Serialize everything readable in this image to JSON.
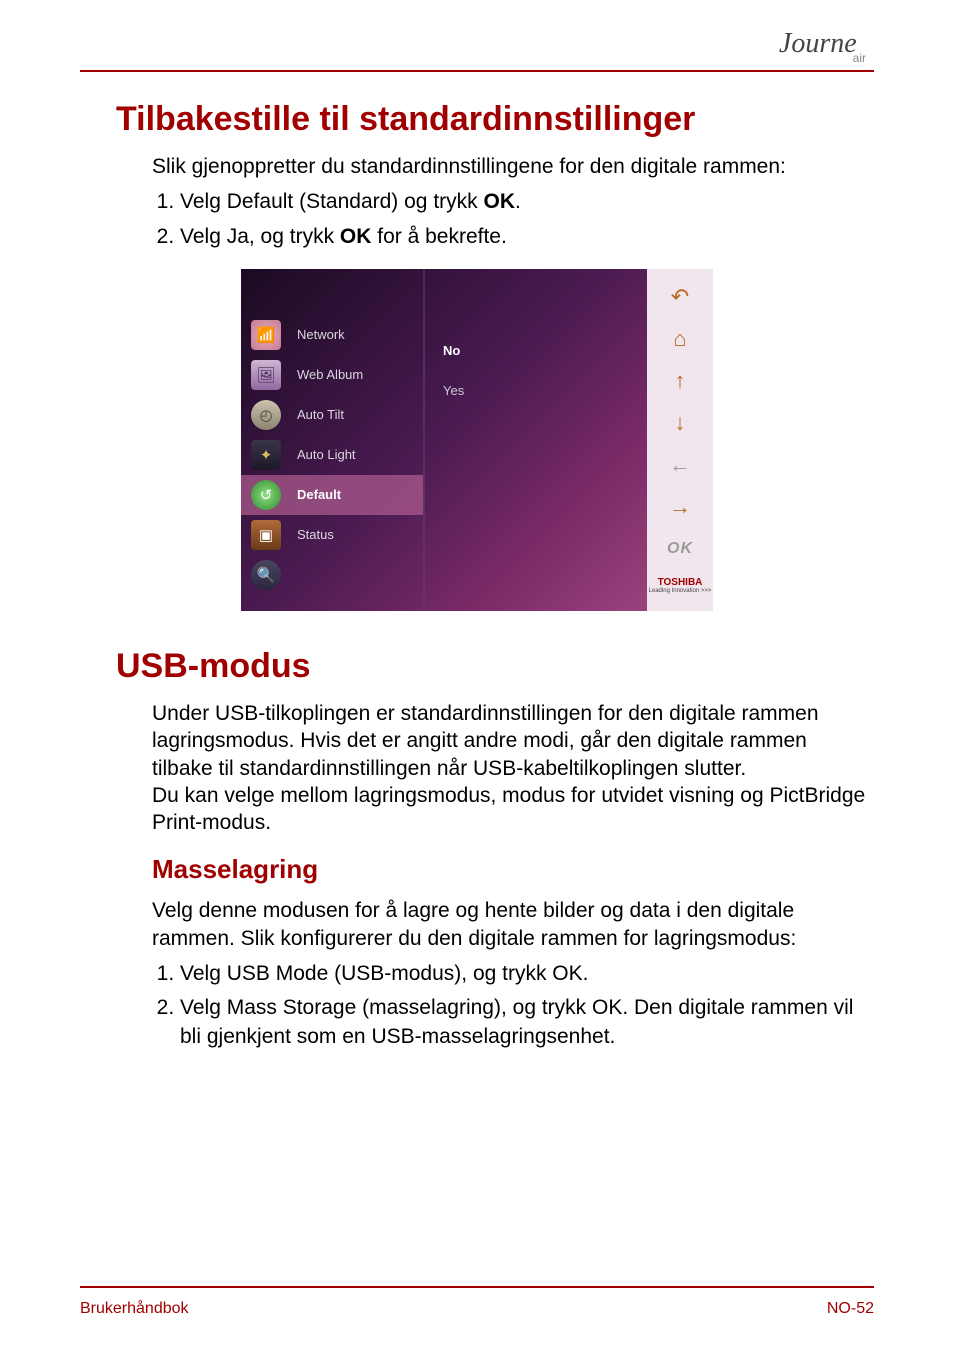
{
  "logo": {
    "main": "Journe",
    "sub": "air"
  },
  "section1": {
    "title": "Tilbakestille til standardinnstillinger",
    "intro": "Slik gjenoppretter du standardinnstillingene for den digitale rammen:",
    "step1_pre": "Velg Default (Standard) og trykk ",
    "step1_bold": "OK",
    "step1_post": ".",
    "step2_pre": "Velg Ja, og trykk ",
    "step2_bold": "OK",
    "step2_post": " for å bekrefte."
  },
  "screenshot": {
    "menu": {
      "network": {
        "label": "Network",
        "icon": "network-icon",
        "selected": false
      },
      "webalbum": {
        "label": "Web Album",
        "icon": "webalbum-icon",
        "selected": false
      },
      "autotilt": {
        "label": "Auto Tilt",
        "icon": "autotilt-icon",
        "selected": false
      },
      "autolight": {
        "label": "Auto Light",
        "icon": "autolight-icon",
        "selected": false
      },
      "default": {
        "label": "Default",
        "icon": "default-icon",
        "selected": true
      },
      "status": {
        "label": "Status",
        "icon": "status-icon",
        "selected": false
      }
    },
    "options": {
      "no": "No",
      "yes": "Yes",
      "selected": "no"
    },
    "sideButtons": {
      "back": "↶",
      "home": "⌂",
      "up": "↑",
      "down": "↓",
      "left": "←",
      "right": "→",
      "ok": "OK"
    },
    "brand": {
      "name": "TOSHIBA",
      "tag": "Leading Innovation >>>"
    },
    "colors": {
      "bg_dark": "#1a0a22",
      "bg_mid": "#4b1b52",
      "bg_light": "#a74c86",
      "side_bg": "#f2e6ee",
      "accent": "#a00000",
      "arrow": "#b86a28"
    }
  },
  "section2": {
    "title": "USB-modus",
    "para": "Under USB-tilkoplingen er standardinnstillingen for den digitale rammen lagringsmodus. Hvis det er angitt andre modi, går den digitale rammen tilbake til standardinnstillingen når USB-kabeltilkoplingen slutter.\nDu kan velge mellom lagringsmodus, modus for utvidet visning og PictBridge Print-modus.",
    "sub": "Masselagring",
    "sub_intro": "Velg denne modusen for å lagre og hente bilder og data i den digitale rammen. Slik konfigurerer du den digitale rammen for lagringsmodus:",
    "step1": "Velg USB Mode (USB-modus), og trykk OK.",
    "step2": "Velg Mass Storage (masselagring), og trykk OK. Den digitale rammen vil bli gjenkjent som en USB-masselagringsenhet."
  },
  "footer": {
    "left": "Brukerhåndbok",
    "right": "NO-52"
  },
  "theme": {
    "accent": "#a00000",
    "text": "#000000",
    "page_bg": "#ffffff"
  }
}
